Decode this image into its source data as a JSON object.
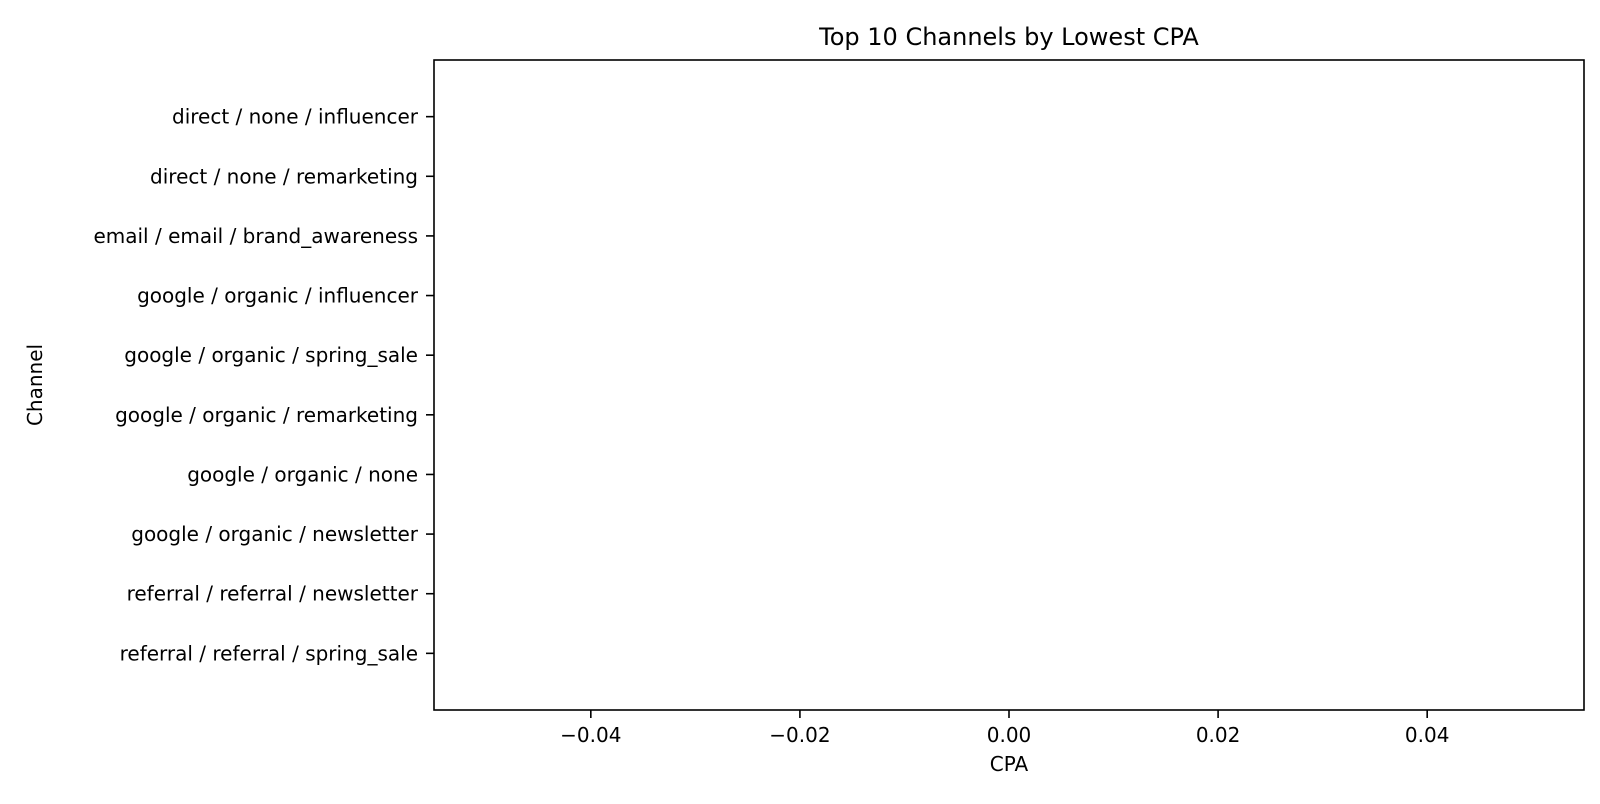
{
  "chart_data": {
    "type": "bar",
    "orientation": "horizontal",
    "title": "Top 10 Channels by Lowest CPA",
    "xlabel": "CPA",
    "ylabel": "Channel",
    "categories": [
      "direct / none / influencer",
      "direct / none / remarketing",
      "email / email / brand_awareness",
      "google / organic / influencer",
      "google / organic / spring_sale",
      "google / organic / remarketing",
      "google / organic / none",
      "google / organic / newsletter",
      "referral / referral / newsletter",
      "referral / referral / spring_sale"
    ],
    "values": [
      0,
      0,
      0,
      0,
      0,
      0,
      0,
      0,
      0,
      0
    ],
    "xlim": [
      -0.055,
      0.055
    ],
    "xticks": [
      -0.04,
      -0.02,
      0.0,
      0.02,
      0.04
    ],
    "xtick_labels": [
      "−0.04",
      "−0.02",
      "0.00",
      "0.02",
      "0.04"
    ],
    "grid": false,
    "bar_color": "#1f77b4",
    "axis_color": "#000000",
    "background": "#ffffff"
  }
}
